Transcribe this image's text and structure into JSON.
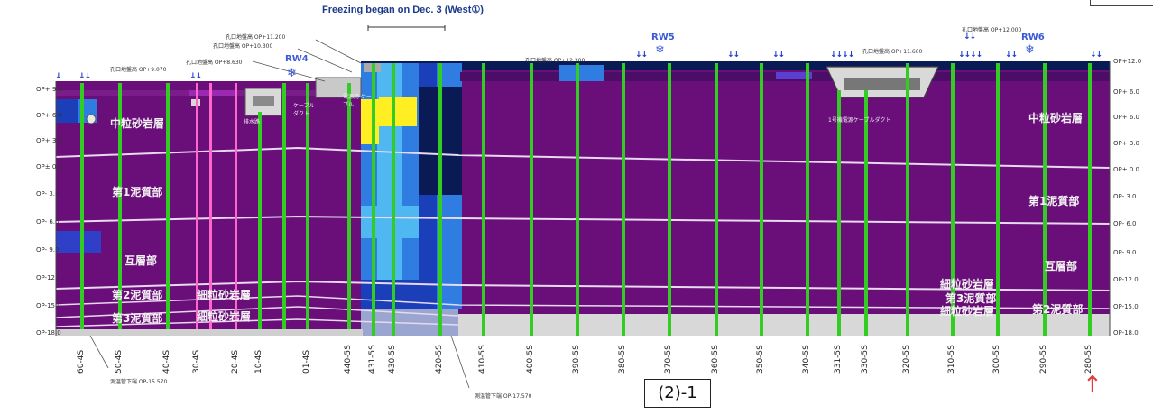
{
  "title": "Freezing began on Dec. 3 (West①)",
  "diagram_label": "(2)-1",
  "op_levels_left": [
    "OP+ 9.0",
    "OP+ 6.0",
    "OP+ 3.0",
    "OP± 0.0",
    "OP- 3.0",
    "OP- 6.0",
    "OP- 9.0",
    "OP-12.0",
    "OP-15.0",
    "OP-18.0"
  ],
  "op_levels_right": [
    "OP+12.0",
    "OP+ 6.0",
    "OP+ 6.0",
    "OP+ 3.0",
    "OP± 0.0",
    "OP- 3.0",
    "OP- 6.0",
    "OP- 9.0",
    "OP-12.0",
    "OP-15.0",
    "OP-18.0"
  ],
  "pipes": [
    "60-4S",
    "50-4S",
    "40-4S",
    "30-4S",
    "20-4S",
    "10-4S",
    "01-4S",
    "440-5S",
    "431-5S",
    "430-5S",
    "420-5S",
    "410-5S",
    "400-5S",
    "390-5S",
    "380-5S",
    "370-5S",
    "360-5S",
    "350-5S",
    "340-5S",
    "331-5S",
    "330-5S",
    "320-5S",
    "310-5S",
    "300-5S",
    "290-5S",
    "280-5S"
  ],
  "rw_labels": [
    "RW4",
    "RW5",
    "RW6"
  ],
  "ground_labels_left": [
    "中粒砂岩層",
    "第1泥質部",
    "互層部",
    "第2泥質部",
    "細粒砂岩層",
    "第3泥質部",
    "細粒砂岩層"
  ],
  "ground_labels_right": [
    "中粒砂岩層",
    "第1泥質部",
    "互層部",
    "細粒砂岩層",
    "第3泥質部",
    "細粒砂岩層",
    "第2泥質部"
  ],
  "annotations": {
    "ground_left": "孔口地盤高 OP+9.070",
    "ground_a": "孔口地盤高 OP+8.630",
    "ground_b": "孔口地盤高 OP+10.300",
    "ground_c": "孔口地盤高 OP+11.200",
    "ground_mid": "孔口地盤高 OP+12.300",
    "ground_right1": "孔口地盤高 OP+11.600",
    "ground_right2": "孔口地盤高 OP+12.000",
    "duct_left": "ケーブル ダクト",
    "duct_mid": "電源用 ケーブル",
    "duct_right": "1号機電源ケーブルダクト",
    "pipe_left": "排水路",
    "bottom_left": "測温管下端 OP-15.570",
    "bottom_mid": "測温管下端 OP-17.570"
  },
  "colors": {
    "soil": "#6a0f7a",
    "green_pipe": "#33cc22",
    "pink_pipe": "#ff66cc",
    "cold1": "#1a3fb8",
    "cold2": "#2f7de0",
    "cold3": "#4fb8f0",
    "ice": "#ffee22",
    "navy": "#0a1a55"
  }
}
